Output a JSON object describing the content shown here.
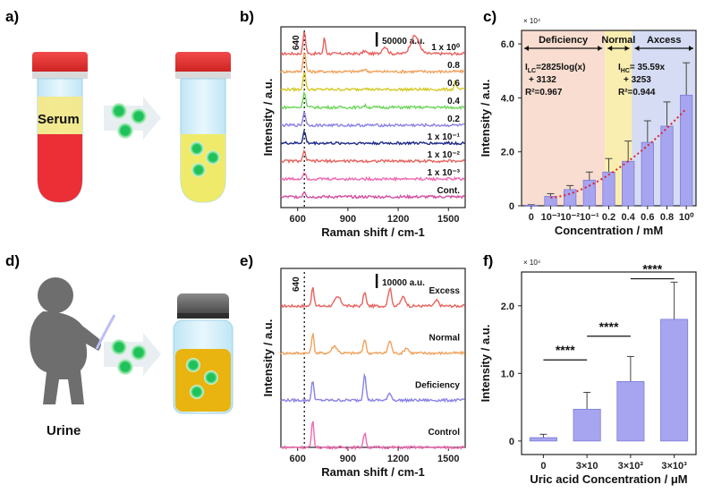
{
  "panels": {
    "a": {
      "label": "a)",
      "tube_label": "Serum"
    },
    "b": {
      "label": "b)"
    },
    "c": {
      "label": "c)"
    },
    "d": {
      "label": "d)",
      "person_label": "Urine"
    },
    "e": {
      "label": "e)"
    },
    "f": {
      "label": "f)"
    }
  },
  "colors": {
    "red": "#e8635f",
    "orange": "#f0a25e",
    "yellow": "#d8c92a",
    "green": "#6ed65a",
    "purple": "#8a82e6",
    "navy": "#1f2a8a",
    "pink": "#ee6ab0",
    "lightbar": "#a7a5ef"
  },
  "chart_data": [
    {
      "id": "b",
      "type": "line",
      "xlabel": "Raman shift / cm-1",
      "ylabel": "Intensity / a.u.",
      "xlim": [
        500,
        1600
      ],
      "xticks": [
        "600",
        "900",
        "1200",
        "1500"
      ],
      "scalebar": "50000 a.u.",
      "marker_label": "640",
      "series": [
        {
          "name": "1 x 10⁰",
          "color": "#e8635f"
        },
        {
          "name": "0.8",
          "color": "#f0a25e"
        },
        {
          "name": "0.6",
          "color": "#d8c92a"
        },
        {
          "name": "0.4",
          "color": "#6ed65a"
        },
        {
          "name": "0.2",
          "color": "#8a82e6"
        },
        {
          "name": "1 x 10⁻¹",
          "color": "#1f2a8a"
        },
        {
          "name": "1 x 10⁻²",
          "color": "#e8635f"
        },
        {
          "name": "1 x 10⁻³",
          "color": "#ee6ab0"
        },
        {
          "name": "Cont.",
          "color": "#d44fa0"
        }
      ]
    },
    {
      "id": "c",
      "type": "bar",
      "xlabel": "Concentration / mM",
      "ylabel": "Intensity / a.u.",
      "scale_label": "× 10⁴",
      "ylim": [
        0,
        6.5
      ],
      "yticks": [
        "0",
        "2.0",
        "4.0",
        "6.0"
      ],
      "categories": [
        "0",
        "10⁻³",
        "10⁻²",
        "10⁻¹",
        "0.2",
        "0.4",
        "0.6",
        "0.8",
        "10⁰"
      ],
      "values": [
        0.02,
        0.35,
        0.6,
        0.95,
        1.25,
        1.65,
        2.35,
        2.95,
        4.1
      ],
      "errors": [
        0.02,
        0.1,
        0.15,
        0.3,
        0.5,
        0.75,
        0.8,
        0.9,
        1.2
      ],
      "regions": [
        {
          "name": "Deficiency",
          "color": "#f8ddd0"
        },
        {
          "name": "Normal",
          "color": "#f9eeb0"
        },
        {
          "name": "Axcess",
          "color": "#d5dcf3"
        }
      ],
      "equations": {
        "low_1": "I",
        "low_sub": "LC",
        "low_2": "=2825log(x)",
        "low_3": "+ 3132",
        "low_r2": "R²=0.967",
        "high_1": "I",
        "high_sub": "HC",
        "high_2": "= 35.59x",
        "high_3": "+ 3253",
        "high_r2": "R²=0.944"
      }
    },
    {
      "id": "e",
      "type": "line",
      "xlabel": "Raman shift / cm-1",
      "ylabel": "Intensity / a.u.",
      "xlim": [
        500,
        1600
      ],
      "xticks": [
        "600",
        "900",
        "1200",
        "1500"
      ],
      "scalebar": "10000 a.u.",
      "marker_label": "640",
      "series": [
        {
          "name": "Excess",
          "color": "#e8635f"
        },
        {
          "name": "Normal",
          "color": "#f0a25e"
        },
        {
          "name": "Deficiency",
          "color": "#8a82e6"
        },
        {
          "name": "Control",
          "color": "#ee6ab0"
        }
      ]
    },
    {
      "id": "f",
      "type": "bar",
      "xlabel": "Uric acid Concentration / μM",
      "ylabel": "Intensity / a.u.",
      "scale_label": "× 10⁴",
      "ylim": [
        -0.2,
        2.5
      ],
      "yticks": [
        "0",
        "1.0",
        "2.0"
      ],
      "categories": [
        "0",
        "3×10",
        "3×10²",
        "3×10³"
      ],
      "values": [
        0.05,
        0.47,
        0.88,
        1.8
      ],
      "errors": [
        0.05,
        0.25,
        0.37,
        0.55
      ],
      "significance": "****"
    }
  ]
}
